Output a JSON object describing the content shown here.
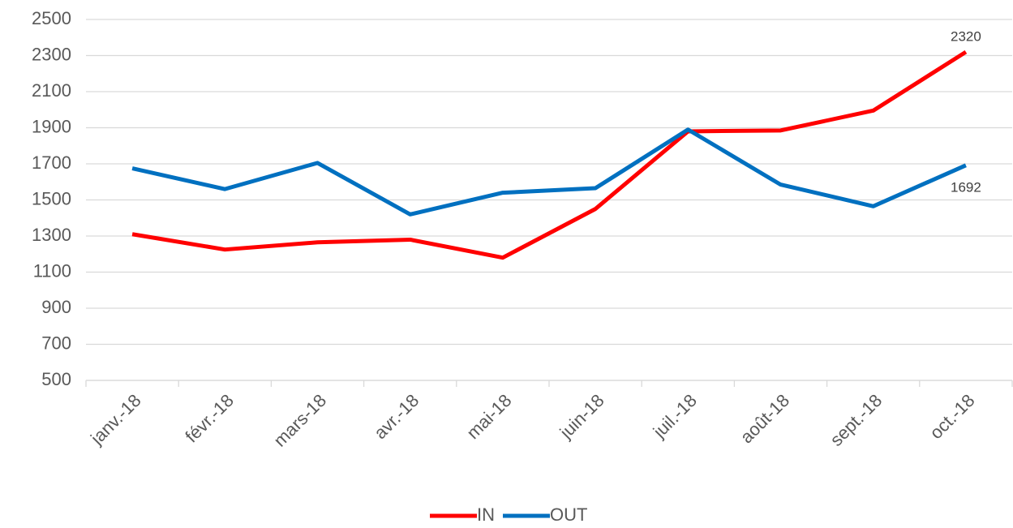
{
  "chart_data": {
    "type": "line",
    "categories": [
      "janv.-18",
      "févr.-18",
      "mars-18",
      "avr.-18",
      "mai-18",
      "juin-18",
      "juil.-18",
      "août-18",
      "sept.-18",
      "oct.-18"
    ],
    "series": [
      {
        "name": "IN",
        "color": "#ff0000",
        "values": [
          1310,
          1225,
          1265,
          1280,
          1180,
          1450,
          1880,
          1885,
          1995,
          2320
        ],
        "value_labels": [
          null,
          null,
          null,
          null,
          null,
          null,
          null,
          null,
          null,
          "2320"
        ]
      },
      {
        "name": "OUT",
        "color": "#0070c0",
        "values": [
          1675,
          1560,
          1705,
          1420,
          1540,
          1565,
          1890,
          1585,
          1465,
          1692
        ],
        "value_labels": [
          null,
          null,
          null,
          null,
          null,
          null,
          null,
          null,
          null,
          "1692"
        ]
      }
    ],
    "ylim": [
      500,
      2500
    ],
    "yticks": [
      500,
      700,
      900,
      1100,
      1300,
      1500,
      1700,
      1900,
      2100,
      2300,
      2500
    ],
    "grid": true,
    "legend": "bottom"
  }
}
